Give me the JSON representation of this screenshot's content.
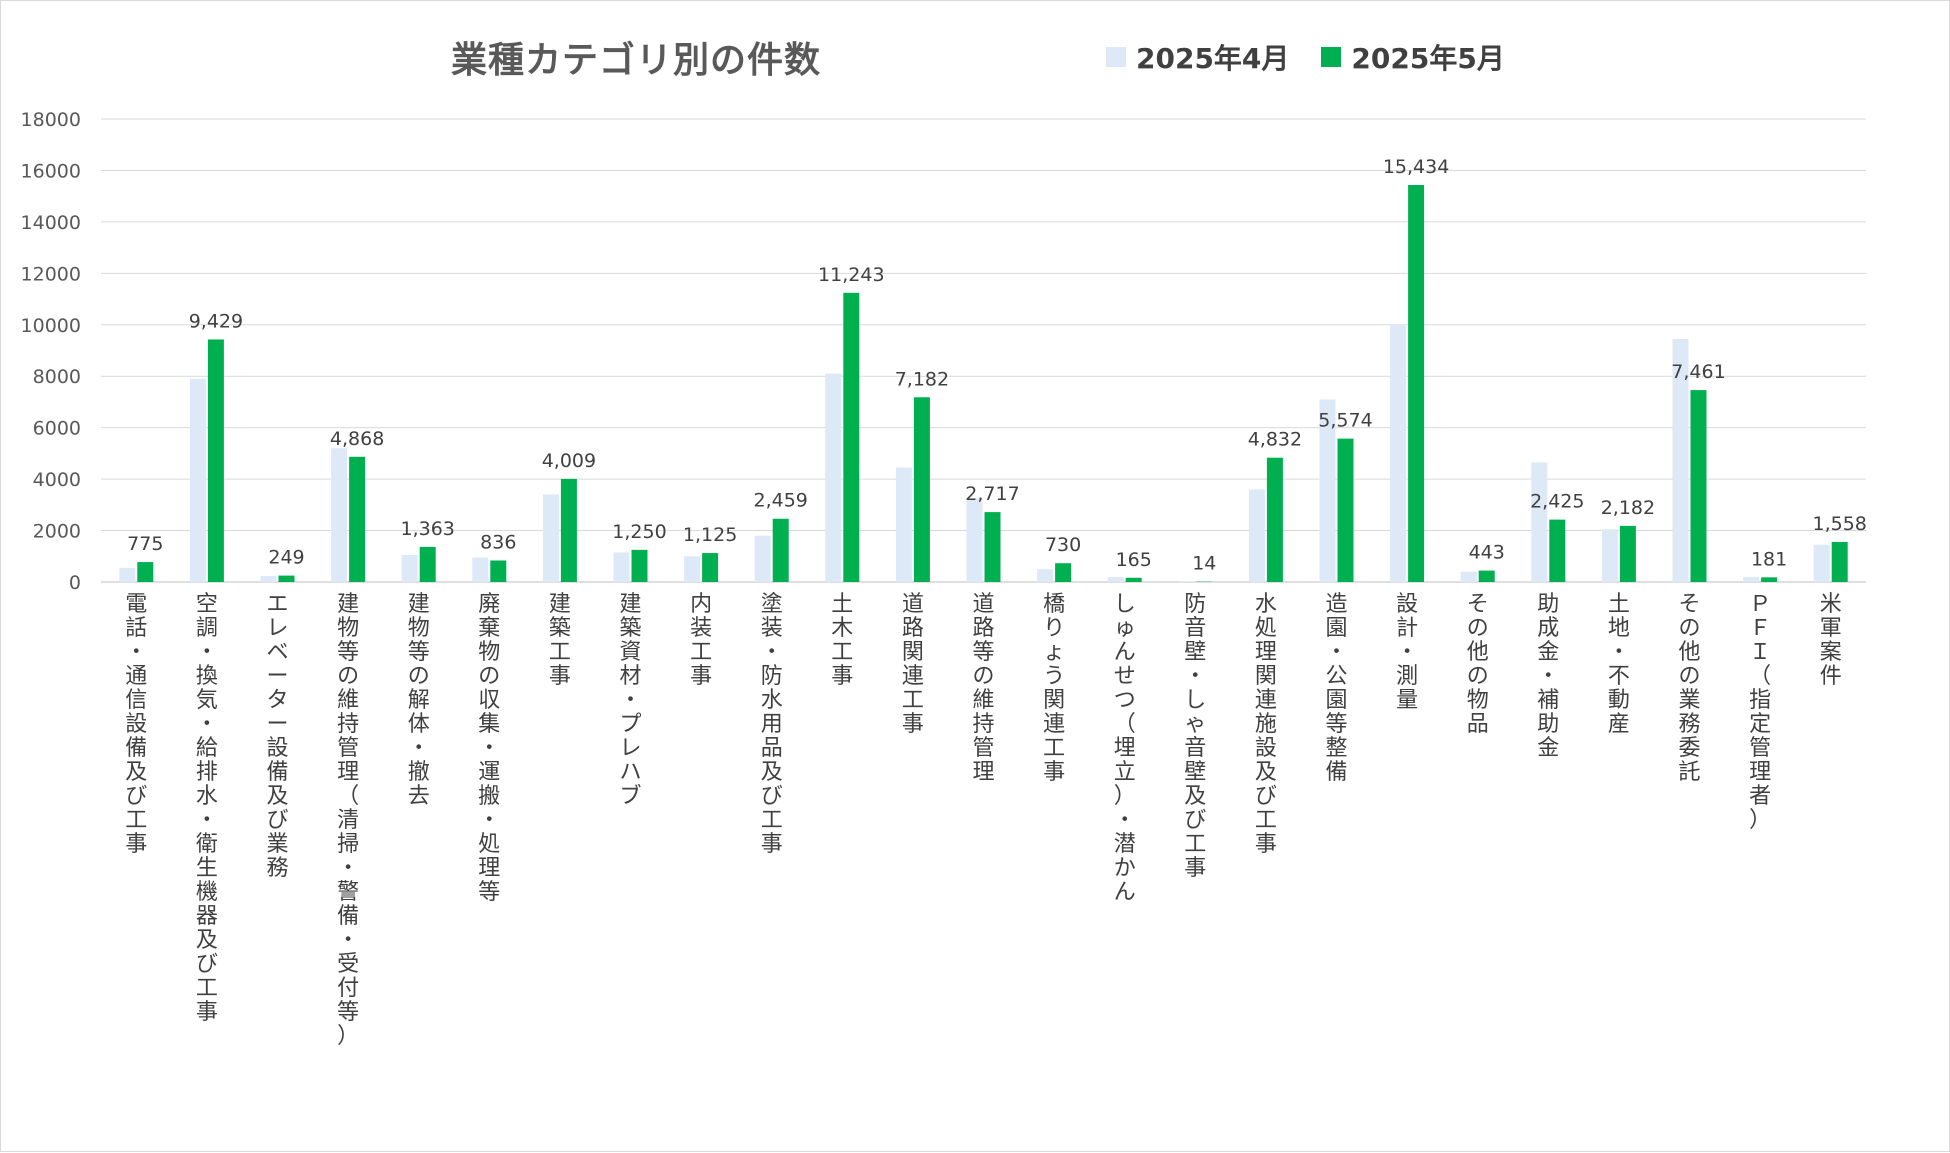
{
  "chart_data": {
    "type": "bar",
    "title": "業種カテゴリ別の件数",
    "xlabel": "",
    "ylabel": "",
    "ylim": [
      0,
      18000
    ],
    "yticks": [
      0,
      2000,
      4000,
      6000,
      8000,
      10000,
      12000,
      14000,
      16000,
      18000
    ],
    "grid": true,
    "legend_position": "top-right",
    "categories": [
      "電話・通信設備及び工事",
      "空調・換気・給排水・衛生機器及び工事",
      "エレベーター設備及び業務",
      "建物等の維持管理（清掃・警備・受付等）",
      "建物等の解体・撤去",
      "廃棄物の収集・運搬・処理等",
      "建築工事",
      "建築資材・プレハブ",
      "内装工事",
      "塗装・防水用品及び工事",
      "土木工事",
      "道路関連工事",
      "道路等の維持管理",
      "橋りょう関連工事",
      "しゅんせつ（埋立）・潜かん",
      "防音壁・しゃ音壁及び工事",
      "水処理関連施設及び工事",
      "造園・公園等整備",
      "設計・測量",
      "その他の物品",
      "助成金・補助金",
      "土地・不動産",
      "その他の業務委託",
      "ＰＦＩ（指定管理者）",
      "米軍案件"
    ],
    "series": [
      {
        "name": "2025年4月",
        "color": "#dde9f6",
        "values": [
          550,
          7900,
          230,
          5200,
          1050,
          950,
          3400,
          1150,
          1000,
          1800,
          8100,
          4450,
          3250,
          500,
          190,
          10,
          3600,
          7100,
          10000,
          400,
          4650,
          2050,
          9450,
          190,
          1450
        ]
      },
      {
        "name": "2025年5月",
        "color": "#00b050",
        "values": [
          775,
          9429,
          249,
          4868,
          1363,
          836,
          4009,
          1250,
          1125,
          2459,
          11243,
          7182,
          2717,
          730,
          165,
          14,
          4832,
          5574,
          15434,
          443,
          2425,
          2182,
          7461,
          181,
          1558
        ]
      }
    ],
    "data_labels": [
      "775",
      "9,429",
      "249",
      "4,868",
      "1,363",
      "836",
      "4,009",
      "1,250",
      "1,125",
      "2,459",
      "11,243",
      "7,182",
      "2,717",
      "730",
      "165",
      "14",
      "4,832",
      "5,574",
      "15,434",
      "443",
      "2,425",
      "2,182",
      "7,461",
      "181",
      "1,558"
    ]
  }
}
